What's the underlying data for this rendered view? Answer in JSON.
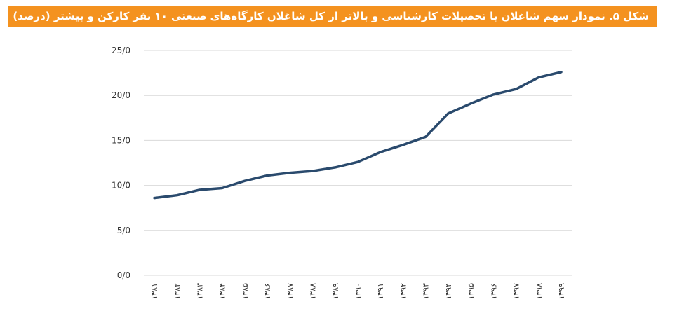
{
  "title": "شکل ۵. نمودار سهم شاغلان با تحصیلات کارشناسی و بالاتر از کل شاغلان کارگاه‌های صنعتی ۱۰ نفر کارکن و بیشتر (درصد)",
  "colors": {
    "title_bg": "#f4921f",
    "title_text": "#ffffff",
    "line": "#2a4a6d",
    "grid": "#d9d9d9"
  },
  "chart_data": {
    "type": "line",
    "title": "شکل ۵. نمودار سهم شاغلان با تحصیلات کارشناسی و بالاتر از کل شاغلان کارگاه‌های صنعتی ۱۰ نفر کارکن و بیشتر (درصد)",
    "categories": [
      "۱۳۸۱",
      "۱۳۸۲",
      "۱۳۸۳",
      "۱۳۸۴",
      "۱۳۸۵",
      "۱۳۸۶",
      "۱۳۸۷",
      "۱۳۸۸",
      "۱۳۸۹",
      "۱۳۹۰",
      "۱۳۹۱",
      "۱۳۹۲",
      "۱۳۹۳",
      "۱۳۹۴",
      "۱۳۹۵",
      "۱۳۹۶",
      "۱۳۹۷",
      "۱۳۹۸",
      "۱۳۹۹"
    ],
    "series": [
      {
        "values": [
          8.6,
          8.9,
          9.5,
          9.7,
          10.5,
          11.1,
          11.4,
          11.6,
          12.0,
          12.6,
          13.7,
          14.5,
          15.4,
          18.0,
          19.1,
          20.1,
          20.7,
          22.0,
          22.6
        ]
      }
    ],
    "yticks": [
      "0/0",
      "5/0",
      "10/0",
      "15/0",
      "20/0",
      "25/0"
    ],
    "ylim": [
      0,
      25
    ],
    "grid": true,
    "legend": "none"
  }
}
